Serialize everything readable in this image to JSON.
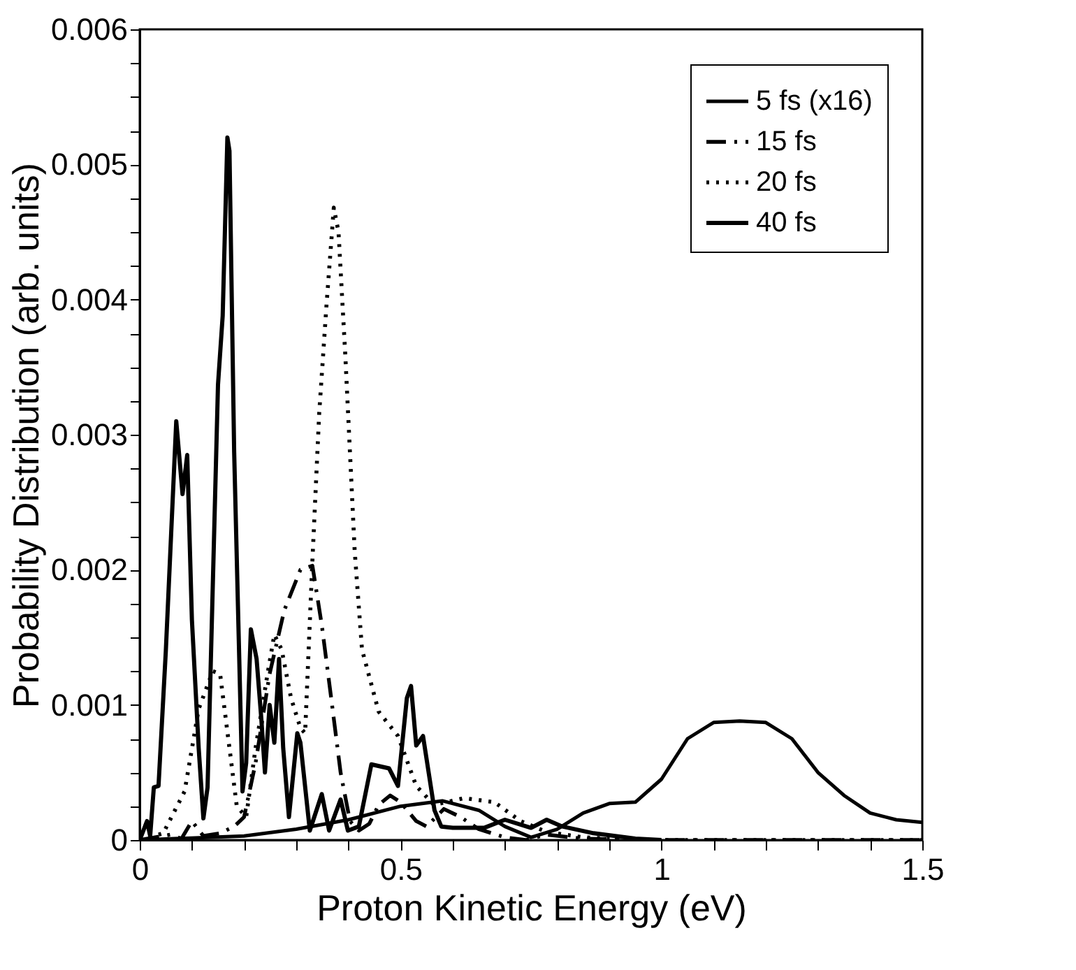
{
  "chart_data": {
    "type": "line",
    "xlabel": "Proton Kinetic Energy (eV)",
    "ylabel": "Probability Distribution (arb. units)",
    "xlim": [
      0,
      1.5
    ],
    "ylim": [
      0,
      0.006
    ],
    "xticks": [
      0,
      {
        "value": 0.1,
        "label": null
      },
      {
        "value": 0.2,
        "label": null
      },
      {
        "value": 0.3,
        "label": null
      },
      {
        "value": 0.4,
        "label": null
      },
      0.5,
      {
        "value": 0.6,
        "label": null
      },
      {
        "value": 0.7,
        "label": null
      },
      {
        "value": 0.8,
        "label": null
      },
      {
        "value": 0.9,
        "label": null
      },
      1,
      {
        "value": 1.1,
        "label": null
      },
      {
        "value": 1.2,
        "label": null
      },
      {
        "value": 1.3,
        "label": null
      },
      {
        "value": 1.4,
        "label": null
      },
      1.5
    ],
    "yticks": [
      0,
      {
        "value": 0.00025,
        "label": null
      },
      {
        "value": 0.0005,
        "label": null
      },
      {
        "value": 0.00075,
        "label": null
      },
      0.001,
      {
        "value": 0.00125,
        "label": null
      },
      {
        "value": 0.0015,
        "label": null
      },
      {
        "value": 0.00175,
        "label": null
      },
      0.002,
      {
        "value": 0.00225,
        "label": null
      },
      {
        "value": 0.0025,
        "label": null
      },
      {
        "value": 0.00275,
        "label": null
      },
      0.003,
      {
        "value": 0.00325,
        "label": null
      },
      {
        "value": 0.0035,
        "label": null
      },
      {
        "value": 0.00375,
        "label": null
      },
      0.004,
      {
        "value": 0.00425,
        "label": null
      },
      {
        "value": 0.0045,
        "label": null
      },
      {
        "value": 0.00475,
        "label": null
      },
      0.005,
      {
        "value": 0.00525,
        "label": null
      },
      {
        "value": 0.0055,
        "label": null
      },
      {
        "value": 0.00575,
        "label": null
      },
      0.006
    ],
    "grid": false,
    "legend": "top right",
    "marker": "none",
    "series": [
      {
        "name": "5 fs (x16)",
        "color": "#000000",
        "line_style": "solid",
        "x": [
          0,
          0.2,
          0.3,
          0.4,
          0.5,
          0.58,
          0.65,
          0.7,
          0.75,
          0.8,
          0.85,
          0.9,
          0.95,
          1.0,
          1.05,
          1.1,
          1.15,
          1.2,
          1.25,
          1.3,
          1.35,
          1.4,
          1.45,
          1.5
        ],
        "values": [
          0,
          3e-05,
          8e-05,
          0.00015,
          0.00025,
          0.00029,
          0.00022,
          0.0001,
          2e-05,
          8e-05,
          0.0002,
          0.00027,
          0.00028,
          0.00045,
          0.00075,
          0.00087,
          0.00088,
          0.00087,
          0.00075,
          0.0005,
          0.00033,
          0.0002,
          0.00015,
          0.00013
        ]
      },
      {
        "name": "15 fs",
        "color": "#000000",
        "line_style": "dashed",
        "x": [
          0,
          0.059,
          0.08,
          0.1,
          0.122,
          0.154,
          0.181,
          0.2,
          0.222,
          0.249,
          0.277,
          0.308,
          0.331,
          0.349,
          0.367,
          0.385,
          0.403,
          0.42,
          0.44,
          0.458,
          0.48,
          0.5,
          0.53,
          0.55,
          0.583,
          0.615,
          0.65,
          0.7,
          0.74,
          0.78,
          0.85,
          1.0,
          1.2,
          1.5
        ],
        "values": [
          0,
          4e-05,
          1e-05,
          0.00014,
          3e-05,
          5e-05,
          0.0001,
          0.00017,
          0.00057,
          0.00123,
          0.0017,
          0.002,
          0.00203,
          0.00159,
          0.00105,
          0.0005,
          0.00014,
          7e-05,
          0.00012,
          0.00026,
          0.00033,
          0.00028,
          0.00014,
          0.0001,
          0.00023,
          0.00017,
          8e-05,
          2e-05,
          0,
          4e-05,
          1e-05,
          0,
          0,
          0
        ]
      },
      {
        "name": "20 fs",
        "color": "#000000",
        "line_style": "dotted",
        "x": [
          0,
          0.045,
          0.086,
          0.113,
          0.14,
          0.154,
          0.172,
          0.186,
          0.204,
          0.222,
          0.245,
          0.258,
          0.272,
          0.29,
          0.308,
          0.317,
          0.331,
          0.344,
          0.358,
          0.372,
          0.381,
          0.394,
          0.412,
          0.426,
          0.458,
          0.495,
          0.53,
          0.564,
          0.622,
          0.68,
          0.73,
          0.78,
          0.85,
          0.95,
          1.2,
          1.5
        ],
        "values": [
          0,
          5e-05,
          0.00036,
          0.00097,
          0.00125,
          0.00123,
          0.00068,
          0.00025,
          0.00017,
          0.00068,
          0.00123,
          0.00152,
          0.00141,
          0.00105,
          0.00083,
          0.00079,
          0.00207,
          0.00316,
          0.00396,
          0.00468,
          0.0045,
          0.00359,
          0.00214,
          0.00141,
          0.00095,
          0.00077,
          0.0004,
          0.00026,
          0.00031,
          0.00028,
          0.00014,
          6e-05,
          2e-05,
          0,
          0,
          0
        ]
      },
      {
        "name": "40 fs",
        "color": "#000000",
        "line_style": "solid",
        "x": [
          0,
          0.014,
          0.02,
          0.027,
          0.036,
          0.05,
          0.07,
          0.082,
          0.091,
          0.1,
          0.113,
          0.122,
          0.13,
          0.15,
          0.159,
          0.168,
          0.172,
          0.181,
          0.197,
          0.204,
          0.213,
          0.224,
          0.233,
          0.24,
          0.249,
          0.258,
          0.267,
          0.275,
          0.286,
          0.302,
          0.308,
          0.326,
          0.349,
          0.363,
          0.385,
          0.399,
          0.42,
          0.444,
          0.478,
          0.495,
          0.512,
          0.52,
          0.53,
          0.543,
          0.565,
          0.578,
          0.6,
          0.66,
          0.7,
          0.75,
          0.78,
          0.81,
          0.87,
          0.95,
          1.0
        ],
        "values": [
          0,
          0.00014,
          3e-05,
          0.00039,
          0.0004,
          0.0014,
          0.0031,
          0.00256,
          0.00285,
          0.00163,
          0.00068,
          0.00016,
          0.00039,
          0.00337,
          0.00388,
          0.0052,
          0.0051,
          0.00287,
          0.00036,
          0.00057,
          0.00156,
          0.00134,
          0.0009,
          0.0005,
          0.001,
          0.00072,
          0.00134,
          0.00068,
          0.00017,
          0.00079,
          0.00072,
          7e-05,
          0.00034,
          7e-05,
          0.0003,
          7e-05,
          0.0001,
          0.00056,
          0.00053,
          0.0004,
          0.00105,
          0.00114,
          0.0007,
          0.00077,
          0.00022,
          0.0001,
          9e-05,
          9e-05,
          0.00015,
          9e-05,
          0.00015,
          0.0001,
          5e-05,
          1e-05,
          0
        ]
      }
    ]
  }
}
